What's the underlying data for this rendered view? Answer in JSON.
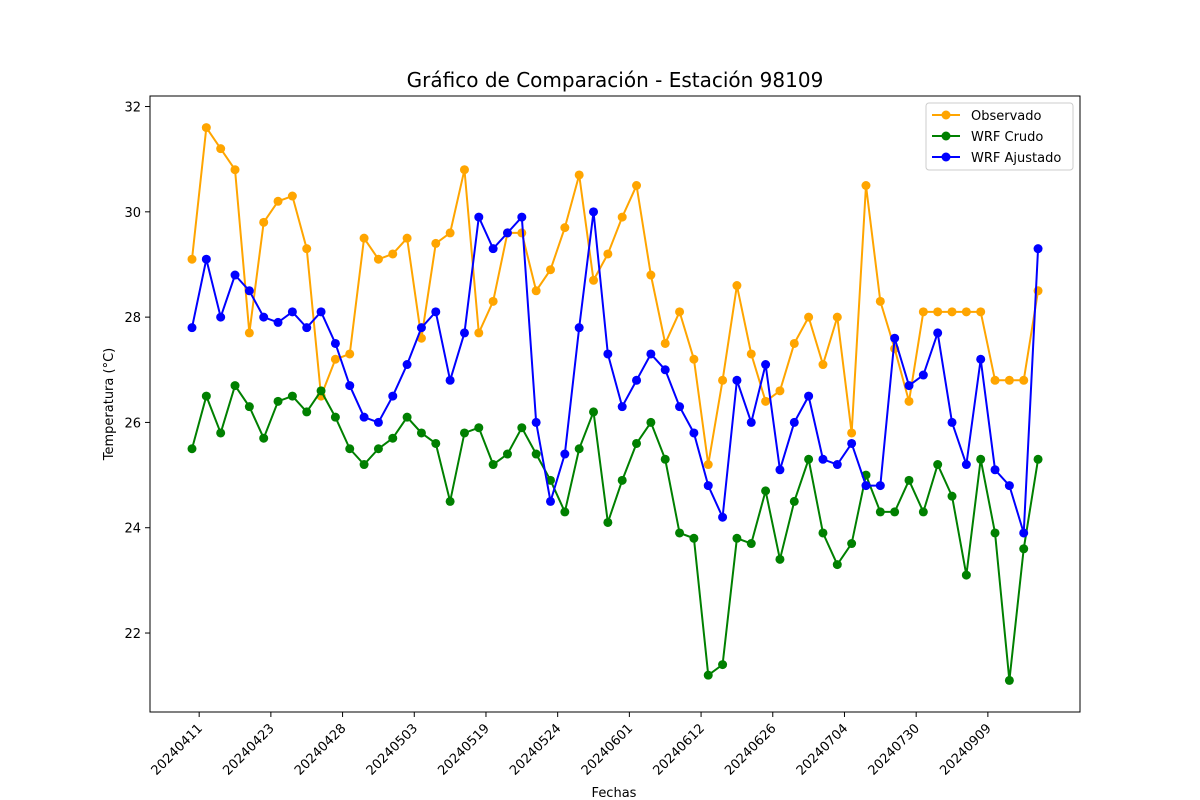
{
  "chart_data": {
    "type": "line",
    "title": "Gráfico de Comparación - Estación 98109",
    "xlabel": "Fechas",
    "ylabel": "Temperatura (°C)",
    "ylim": [
      20.5,
      32.2
    ],
    "yticks": [
      22,
      24,
      26,
      28,
      30,
      32
    ],
    "xtick_labels": [
      "20240411",
      "20240423",
      "20240428",
      "20240503",
      "20240519",
      "20240524",
      "20240601",
      "20240612",
      "20240626",
      "20240704",
      "20240730",
      "20240909"
    ],
    "xtick_positions": [
      0.5,
      5.5,
      10.5,
      15.5,
      20.5,
      25.5,
      30.5,
      35.5,
      40.5,
      45.5,
      50.5,
      55.5
    ],
    "x_count": 60,
    "grid": false,
    "legend_position": "top-right",
    "series": [
      {
        "name": "Observado",
        "color": "#ffa500",
        "values": [
          29.1,
          31.6,
          31.2,
          30.8,
          27.7,
          29.8,
          30.2,
          30.3,
          29.3,
          26.5,
          27.2,
          27.3,
          29.5,
          29.1,
          29.2,
          29.5,
          27.6,
          29.4,
          29.6,
          30.8,
          27.7,
          28.3,
          29.6,
          29.6,
          28.5,
          28.9,
          29.7,
          30.7,
          28.7,
          29.2,
          29.9,
          30.5,
          28.8,
          27.5,
          28.1,
          27.2,
          25.2,
          26.8,
          28.6,
          27.3,
          26.4,
          26.6,
          27.5,
          28.0,
          27.1,
          28.0,
          25.8,
          30.5,
          28.3,
          27.4,
          26.4,
          28.1,
          28.1,
          28.1,
          28.1,
          28.1,
          26.8,
          26.8,
          26.8,
          28.5
        ]
      },
      {
        "name": "WRF Crudo",
        "color": "#008000",
        "values": [
          25.5,
          26.5,
          25.8,
          26.7,
          26.3,
          25.7,
          26.4,
          26.5,
          26.2,
          26.6,
          26.1,
          25.5,
          25.2,
          25.5,
          25.7,
          26.1,
          25.8,
          25.6,
          24.5,
          25.8,
          25.9,
          25.2,
          25.4,
          25.9,
          25.4,
          24.9,
          24.3,
          25.5,
          26.2,
          24.1,
          24.9,
          25.6,
          26.0,
          25.3,
          23.9,
          23.8,
          21.2,
          21.4,
          23.8,
          23.7,
          24.7,
          23.4,
          24.5,
          25.3,
          23.9,
          23.3,
          23.7,
          25.0,
          24.3,
          24.3,
          24.9,
          24.3,
          25.2,
          24.6,
          23.1,
          25.3,
          23.9,
          21.1,
          23.6,
          25.3
        ]
      },
      {
        "name": "WRF Ajustado",
        "color": "#0000ff",
        "values": [
          27.8,
          29.1,
          28.0,
          28.8,
          28.5,
          28.0,
          27.9,
          28.1,
          27.8,
          28.1,
          27.5,
          26.7,
          26.1,
          26.0,
          26.5,
          27.1,
          27.8,
          28.1,
          26.8,
          27.7,
          29.9,
          29.3,
          29.6,
          29.9,
          26.0,
          24.5,
          25.4,
          27.8,
          30.0,
          27.3,
          26.3,
          26.8,
          27.3,
          27.0,
          26.3,
          25.8,
          24.8,
          24.2,
          26.8,
          26.0,
          27.1,
          25.1,
          26.0,
          26.5,
          25.3,
          25.2,
          25.6,
          24.8,
          24.8,
          27.6,
          26.7,
          26.9,
          27.7,
          26.0,
          25.2,
          27.2,
          25.1,
          24.8,
          23.9,
          29.3
        ]
      }
    ]
  }
}
